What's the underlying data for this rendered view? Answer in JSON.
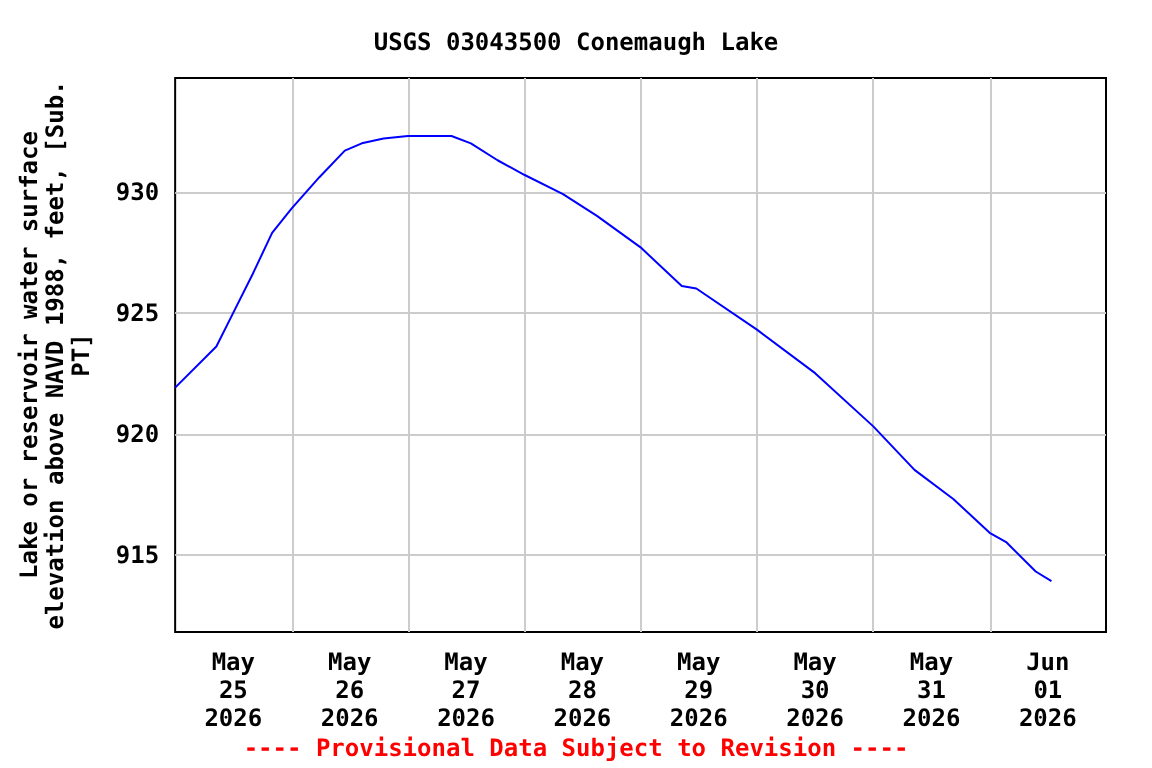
{
  "chart_data": {
    "type": "line",
    "title": "USGS 03043500 Conemaugh Lake",
    "ylabel": "Lake or reservoir water surface\nelevation above NAVD 1988, feet, [Sub.\nPT]",
    "annotations": [
      "---- Provisional Data Subject to Revision ----"
    ],
    "series": [
      {
        "color": "#0000ff",
        "x": [
          "2026-05-25T00:00",
          "2026-05-25T08:30",
          "2026-05-25T12:00",
          "2026-05-25T16:00",
          "2026-05-25T20:00",
          "2026-05-26T00:00",
          "2026-05-26T05:45",
          "2026-05-26T11:00",
          "2026-05-26T14:30",
          "2026-05-26T19:00",
          "2026-05-27T00:00",
          "2026-05-27T09:00",
          "2026-05-27T13:00",
          "2026-05-27T18:30",
          "2026-05-28T00:00",
          "2026-05-28T08:00",
          "2026-05-28T15:00",
          "2026-05-29T00:00",
          "2026-05-29T08:30",
          "2026-05-29T11:30",
          "2026-05-30T00:00",
          "2026-05-30T12:00",
          "2026-05-31T00:00",
          "2026-05-31T08:30",
          "2026-05-31T16:30",
          "2026-06-01T00:00",
          "2026-06-01T03:30",
          "2026-06-01T09:30",
          "2026-06-01T12:45"
        ],
        "values": [
          921.9,
          923.6,
          925.0,
          926.6,
          928.3,
          929.3,
          930.6,
          931.7,
          932.0,
          932.2,
          932.3,
          932.3,
          932.0,
          931.3,
          930.7,
          929.9,
          929.0,
          927.7,
          926.1,
          926.0,
          924.3,
          922.5,
          920.3,
          918.5,
          917.3,
          915.9,
          915.5,
          914.3,
          913.9
        ]
      }
    ],
    "xlim": [
      "2026-05-25T00:00",
      "2026-06-02T00:00"
    ],
    "xticks": [
      {
        "value": "2026-05-25T12:00",
        "label": "May\n25\n2026"
      },
      {
        "value": "2026-05-26T00:00",
        "label": null
      },
      {
        "value": "2026-05-26T12:00",
        "label": "May\n26\n2026"
      },
      {
        "value": "2026-05-27T00:00",
        "label": null
      },
      {
        "value": "2026-05-27T12:00",
        "label": "May\n27\n2026"
      },
      {
        "value": "2026-05-28T00:00",
        "label": null
      },
      {
        "value": "2026-05-28T12:00",
        "label": "May\n28\n2026"
      },
      {
        "value": "2026-05-29T00:00",
        "label": null
      },
      {
        "value": "2026-05-29T12:00",
        "label": "May\n29\n2026"
      },
      {
        "value": "2026-05-30T00:00",
        "label": null
      },
      {
        "value": "2026-05-30T12:00",
        "label": "May\n30\n2026"
      },
      {
        "value": "2026-05-31T00:00",
        "label": null
      },
      {
        "value": "2026-05-31T12:00",
        "label": "May\n31\n2026"
      },
      {
        "value": "2026-06-01T00:00",
        "label": null
      },
      {
        "value": "2026-06-01T12:00",
        "label": "Jun\n01\n2026"
      }
    ],
    "ylim": [
      911.8,
      934.7
    ],
    "yticks": [
      915,
      920,
      925,
      930
    ],
    "grid": true,
    "marker": "none",
    "line_style": "solid"
  }
}
